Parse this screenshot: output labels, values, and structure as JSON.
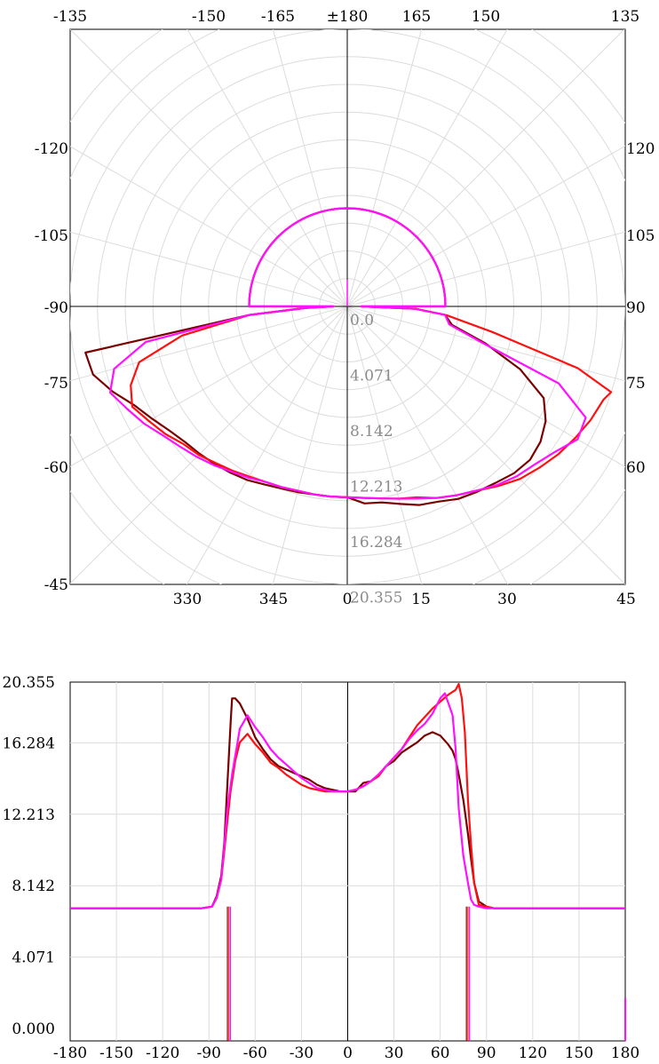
{
  "chart_data": [
    {
      "type": "polar-line",
      "radial_ticks": [
        "0.0",
        "4.071",
        "8.142",
        "12.213",
        "16.284",
        "20.355"
      ],
      "radial_range": [
        0,
        20.355
      ],
      "top_angle_labels": [
        "-135",
        "-150",
        "-165",
        "±180",
        "165",
        "150",
        "135"
      ],
      "left_angle_labels": [
        "-120",
        "-105",
        "-90",
        "-75",
        "-60",
        "-45"
      ],
      "right_angle_labels": [
        "120",
        "105",
        "90",
        "75",
        "60",
        "45"
      ],
      "bottom_angle_labels": [
        "330",
        "345",
        "0",
        "15",
        "30"
      ],
      "angle_step_deg": 15,
      "grid": true,
      "series_colors": [
        "#7a0000",
        "#ff1010",
        "#ff10ff"
      ],
      "series": [
        {
          "color": "#7a0000",
          "angles": [
            -90,
            -88,
            -85,
            -80,
            -75,
            -70,
            -65,
            -60,
            -55,
            -50,
            -45,
            -40,
            -35,
            -30,
            -25,
            -20,
            -15,
            -10,
            -5,
            0,
            5,
            10,
            15,
            20,
            25,
            30,
            35,
            40,
            45,
            50,
            55,
            60,
            65,
            70,
            75,
            80,
            85,
            88,
            90
          ],
          "values": [
            1,
            3,
            7.2,
            19.5,
            19.3,
            18.3,
            17.2,
            16.5,
            15.9,
            15.5,
            15.3,
            15.1,
            14.9,
            14.7,
            14.4,
            14.2,
            14.1,
            14.0,
            14.0,
            14.0,
            14.5,
            14.6,
            15.0,
            15.5,
            15.8,
            16.3,
            16.6,
            16.9,
            17.3,
            17.5,
            17.3,
            16.8,
            15.9,
            13.5,
            10.5,
            7.8,
            7.2,
            5,
            1
          ]
        },
        {
          "color": "#ff1010",
          "angles": [
            -90,
            -88,
            -85,
            -80,
            -75,
            -70,
            -65,
            -60,
            -55,
            -50,
            -45,
            -40,
            -35,
            -30,
            -25,
            -20,
            -15,
            -10,
            -5,
            0,
            5,
            10,
            15,
            20,
            25,
            30,
            35,
            40,
            45,
            50,
            55,
            60,
            65,
            70,
            72,
            75,
            80,
            85,
            88,
            90
          ],
          "values": [
            1,
            3,
            7.2,
            12.3,
            15.8,
            16.9,
            17.4,
            16.8,
            16.3,
            15.7,
            15.4,
            15.0,
            14.7,
            14.4,
            14.2,
            14.1,
            14.0,
            14.0,
            14.0,
            14.0,
            14.1,
            14.3,
            14.6,
            14.9,
            15.5,
            16.0,
            16.5,
            17.2,
            17.9,
            18.4,
            18.9,
            19.3,
            19.7,
            20.0,
            20.35,
            17.5,
            10.8,
            7.3,
            5,
            1
          ]
        },
        {
          "color": "#ff10ff",
          "angles": [
            -90,
            -88,
            -85,
            -80,
            -75,
            -70,
            -65,
            -60,
            -55,
            -50,
            -45,
            -40,
            -35,
            -30,
            -25,
            -20,
            -15,
            -10,
            -5,
            0,
            5,
            10,
            15,
            20,
            25,
            30,
            35,
            40,
            45,
            50,
            55,
            60,
            65,
            70,
            75,
            80,
            85,
            88,
            90
          ],
          "values": [
            1,
            3,
            7.2,
            15.0,
            17.7,
            18.5,
            17.8,
            17.2,
            16.5,
            16.0,
            15.6,
            15.2,
            14.8,
            14.5,
            14.2,
            14.1,
            14.0,
            14.0,
            14.0,
            14.0,
            14.1,
            14.3,
            14.6,
            15.0,
            15.5,
            16.0,
            16.5,
            17.1,
            17.6,
            18.0,
            18.6,
            19.5,
            19.3,
            16.5,
            10.2,
            7.6,
            7.2,
            5,
            1
          ]
        }
      ],
      "back_hemisphere_value": 7.2
    },
    {
      "type": "line",
      "xlim": [
        -180,
        180
      ],
      "ylim": [
        0,
        20.355
      ],
      "x_ticks": [
        "-180",
        "-150",
        "-120",
        "-90",
        "-60",
        "-30",
        "0",
        "30",
        "60",
        "90",
        "120",
        "150",
        "180"
      ],
      "y_ticks": [
        "0.000",
        "4.071",
        "8.142",
        "12.213",
        "16.284",
        "20.355"
      ],
      "grid": true,
      "series": [
        {
          "color": "#7a0000",
          "x": [
            -180,
            -95,
            -88,
            -85,
            -82,
            -80,
            -78,
            -76,
            -75,
            -73,
            -70,
            -65,
            -60,
            -55,
            -50,
            -45,
            -40,
            -35,
            -30,
            -25,
            -20,
            -15,
            -10,
            -5,
            0,
            5,
            10,
            15,
            20,
            25,
            30,
            35,
            40,
            45,
            50,
            55,
            60,
            65,
            68,
            70,
            72,
            75,
            78,
            80,
            82,
            85,
            90,
            95,
            180
          ],
          "y": [
            7.1,
            7.1,
            7.2,
            7.8,
            9.0,
            11.0,
            14.5,
            18.0,
            19.5,
            19.5,
            19.2,
            18.3,
            17.2,
            16.5,
            15.9,
            15.5,
            15.3,
            15.1,
            14.9,
            14.7,
            14.4,
            14.2,
            14.1,
            14.0,
            14.0,
            14.0,
            14.5,
            14.6,
            15.0,
            15.5,
            15.8,
            16.3,
            16.6,
            16.9,
            17.3,
            17.5,
            17.3,
            16.8,
            16.4,
            15.9,
            15.0,
            13.5,
            11.5,
            10.0,
            8.6,
            7.5,
            7.2,
            7.1,
            7.1
          ]
        },
        {
          "color": "#ff1010",
          "x": [
            -180,
            -95,
            -88,
            -85,
            -82,
            -80,
            -78,
            -76,
            -73,
            -70,
            -65,
            -60,
            -55,
            -50,
            -45,
            -40,
            -35,
            -30,
            -25,
            -20,
            -15,
            -10,
            -5,
            0,
            5,
            10,
            15,
            20,
            25,
            30,
            35,
            40,
            45,
            50,
            55,
            60,
            65,
            70,
            72,
            74,
            76,
            78,
            80,
            82,
            85,
            90,
            95,
            180
          ],
          "y": [
            7.1,
            7.1,
            7.2,
            7.7,
            8.8,
            10.5,
            12.3,
            14.0,
            15.8,
            16.9,
            17.4,
            16.8,
            16.3,
            15.7,
            15.4,
            15.0,
            14.7,
            14.4,
            14.2,
            14.1,
            14.0,
            14.0,
            14.0,
            14.0,
            14.1,
            14.3,
            14.6,
            14.9,
            15.5,
            16.0,
            16.5,
            17.2,
            17.9,
            18.4,
            18.9,
            19.3,
            19.7,
            20.0,
            20.35,
            19.5,
            17.5,
            13.5,
            10.8,
            8.6,
            7.3,
            7.2,
            7.1,
            7.1
          ]
        },
        {
          "color": "#ff10ff",
          "x": [
            -180,
            -95,
            -88,
            -85,
            -82,
            -80,
            -78,
            -75,
            -72,
            -70,
            -65,
            -60,
            -55,
            -50,
            -45,
            -40,
            -35,
            -30,
            -25,
            -20,
            -15,
            -10,
            -5,
            0,
            5,
            10,
            15,
            20,
            25,
            30,
            35,
            40,
            45,
            50,
            55,
            60,
            63,
            65,
            68,
            70,
            72,
            75,
            78,
            80,
            82,
            85,
            90,
            95,
            180
          ],
          "y": [
            7.1,
            7.1,
            7.2,
            7.7,
            8.8,
            10.8,
            13.0,
            15.0,
            16.6,
            17.7,
            18.5,
            17.8,
            17.2,
            16.5,
            16.0,
            15.6,
            15.2,
            14.8,
            14.5,
            14.2,
            14.1,
            14.0,
            14.0,
            14.0,
            14.1,
            14.3,
            14.6,
            15.0,
            15.5,
            16.0,
            16.5,
            17.1,
            17.6,
            18.0,
            18.6,
            19.5,
            19.8,
            19.3,
            18.5,
            16.5,
            13.0,
            10.2,
            8.6,
            7.6,
            7.3,
            7.2,
            7.1,
            7.1,
            7.1
          ]
        }
      ],
      "dropouts": [
        {
          "x": -78,
          "color": "#7a0000"
        },
        {
          "x": -77,
          "color": "#ff1010"
        },
        {
          "x": -76,
          "color": "#ff10ff"
        },
        {
          "x": 77,
          "color": "#7a0000"
        },
        {
          "x": 78,
          "color": "#ff1010"
        },
        {
          "x": 79,
          "color": "#ff10ff"
        }
      ],
      "end_spike": {
        "x": 180,
        "y": 1.8,
        "color": "#ff10ff"
      }
    }
  ]
}
